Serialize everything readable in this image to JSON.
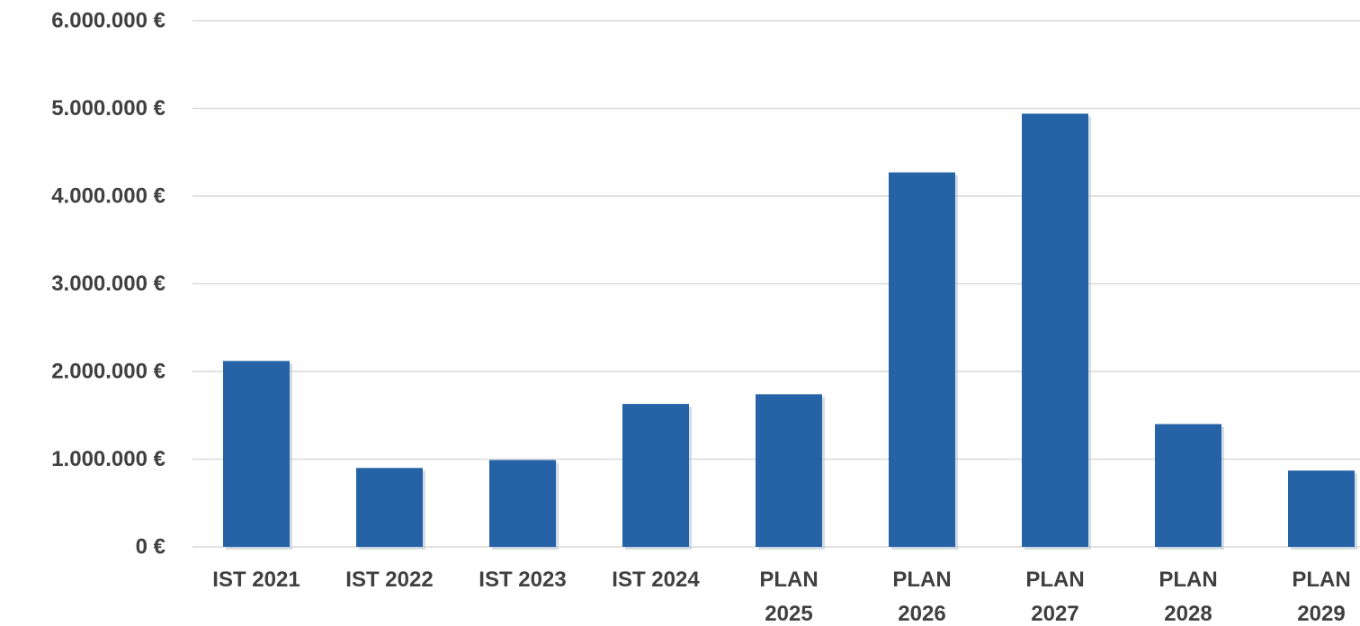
{
  "chart_data": {
    "type": "bar",
    "categories": [
      "IST 2021",
      "IST 2022",
      "IST 2023",
      "IST 2024",
      "PLAN 2025",
      "PLAN 2026",
      "PLAN 2027",
      "PLAN 2028",
      "PLAN 2029"
    ],
    "values": [
      2120000,
      900000,
      990000,
      1630000,
      1740000,
      4270000,
      4940000,
      1400000,
      870000
    ],
    "ylim": [
      0,
      6000000
    ],
    "y_ticks": [
      0,
      1000000,
      2000000,
      3000000,
      4000000,
      5000000,
      6000000
    ],
    "y_tick_labels": [
      "0 €",
      "1.000.000 €",
      "2.000.000 €",
      "3.000.000 €",
      "4.000.000 €",
      "5.000.000 €",
      "6.000.000 €"
    ],
    "title": "",
    "xlabel": "",
    "ylabel": "",
    "grid": true,
    "legend": "none",
    "colors": {
      "bar": "#2563a6",
      "grid": "#d9d9d9",
      "text": "#404040"
    }
  }
}
